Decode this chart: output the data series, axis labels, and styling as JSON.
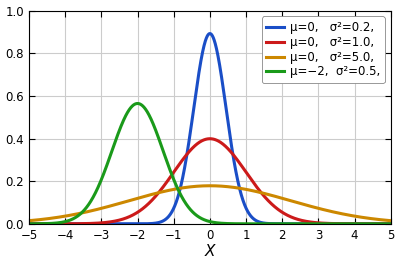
{
  "curves": [
    {
      "mu": 0,
      "sigma2": 0.2,
      "color": "#1a4ec7",
      "label": "μ=0,   σ²=0.2,"
    },
    {
      "mu": 0,
      "sigma2": 1.0,
      "color": "#cc1a1a",
      "label": "μ=0,   σ²=1.0,"
    },
    {
      "mu": 0,
      "sigma2": 5.0,
      "color": "#cc8800",
      "label": "μ=0,   σ²=5.0,"
    },
    {
      "mu": -2,
      "sigma2": 0.5,
      "color": "#1a9a1a",
      "label": "μ=−2,  σ²=0.5,"
    }
  ],
  "xlim": [
    -5,
    5
  ],
  "ylim": [
    0,
    1.0
  ],
  "xlabel": "X",
  "xticks": [
    -5,
    -4,
    -3,
    -2,
    -1,
    0,
    1,
    2,
    3,
    4,
    5
  ],
  "yticks": [
    0.0,
    0.2,
    0.4,
    0.6,
    0.8,
    1.0
  ],
  "linewidth": 2.2,
  "background_color": "#ffffff",
  "grid_color": "#cccccc",
  "legend_fontsize": 8.5,
  "tick_fontsize": 8.5,
  "xlabel_fontsize": 11,
  "figsize": [
    4.0,
    2.65
  ],
  "dpi": 100
}
